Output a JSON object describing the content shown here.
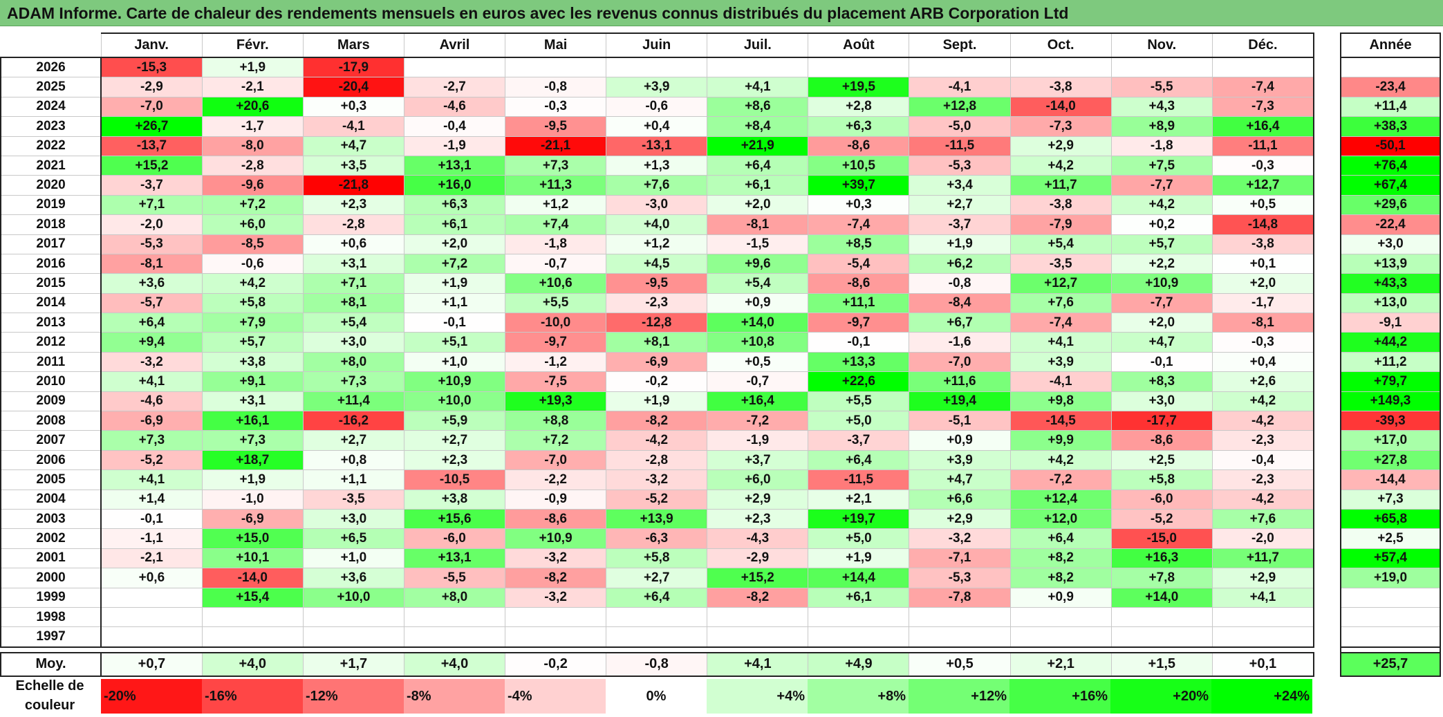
{
  "title": "ADAM Informe. Carte de chaleur des rendements mensuels en euros avec les revenus connus distribués du placement ARB Corporation Ltd",
  "chart_data": {
    "type": "heatmap",
    "months": [
      "Janv.",
      "Févr.",
      "Mars",
      "Avril",
      "Mai",
      "Juin",
      "Juil.",
      "Août",
      "Sept.",
      "Oct.",
      "Nov.",
      "Déc."
    ],
    "year_header": "Année",
    "rows": [
      {
        "year": "2026",
        "values": [
          "-15,3",
          "+1,9",
          "-17,9",
          "",
          "",
          "",
          "",
          "",
          "",
          "",
          "",
          ""
        ],
        "annual": ""
      },
      {
        "year": "2025",
        "values": [
          "-2,9",
          "-2,1",
          "-20,4",
          "-2,7",
          "-0,8",
          "+3,9",
          "+4,1",
          "+19,5",
          "-4,1",
          "-3,8",
          "-5,5",
          "-7,4"
        ],
        "annual": "-23,4"
      },
      {
        "year": "2024",
        "values": [
          "-7,0",
          "+20,6",
          "+0,3",
          "-4,6",
          "-0,3",
          "-0,6",
          "+8,6",
          "+2,8",
          "+12,8",
          "-14,0",
          "+4,3",
          "-7,3"
        ],
        "annual": "+11,4"
      },
      {
        "year": "2023",
        "values": [
          "+26,7",
          "-1,7",
          "-4,1",
          "-0,4",
          "-9,5",
          "+0,4",
          "+8,4",
          "+6,3",
          "-5,0",
          "-7,3",
          "+8,9",
          "+16,4"
        ],
        "annual": "+38,3"
      },
      {
        "year": "2022",
        "values": [
          "-13,7",
          "-8,0",
          "+4,7",
          "-1,9",
          "-21,1",
          "-13,1",
          "+21,9",
          "-8,6",
          "-11,5",
          "+2,9",
          "-1,8",
          "-11,1"
        ],
        "annual": "-50,1"
      },
      {
        "year": "2021",
        "values": [
          "+15,2",
          "-2,8",
          "+3,5",
          "+13,1",
          "+7,3",
          "+1,3",
          "+6,4",
          "+10,5",
          "-5,3",
          "+4,2",
          "+7,5",
          "-0,3"
        ],
        "annual": "+76,4"
      },
      {
        "year": "2020",
        "values": [
          "-3,7",
          "-9,6",
          "-21,8",
          "+16,0",
          "+11,3",
          "+7,6",
          "+6,1",
          "+39,7",
          "+3,4",
          "+11,7",
          "-7,7",
          "+12,7"
        ],
        "annual": "+67,4"
      },
      {
        "year": "2019",
        "values": [
          "+7,1",
          "+7,2",
          "+2,3",
          "+6,3",
          "+1,2",
          "-3,0",
          "+2,0",
          "+0,3",
          "+2,7",
          "-3,8",
          "+4,2",
          "+0,5"
        ],
        "annual": "+29,6"
      },
      {
        "year": "2018",
        "values": [
          "-2,0",
          "+6,0",
          "-2,8",
          "+6,1",
          "+7,4",
          "+4,0",
          "-8,1",
          "-7,4",
          "-3,7",
          "-7,9",
          "+0,2",
          "-14,8"
        ],
        "annual": "-22,4"
      },
      {
        "year": "2017",
        "values": [
          "-5,3",
          "-8,5",
          "+0,6",
          "+2,0",
          "-1,8",
          "+1,2",
          "-1,5",
          "+8,5",
          "+1,9",
          "+5,4",
          "+5,7",
          "-3,8"
        ],
        "annual": "+3,0"
      },
      {
        "year": "2016",
        "values": [
          "-8,1",
          "-0,6",
          "+3,1",
          "+7,2",
          "-0,7",
          "+4,5",
          "+9,6",
          "-5,4",
          "+6,2",
          "-3,5",
          "+2,2",
          "+0,1"
        ],
        "annual": "+13,9"
      },
      {
        "year": "2015",
        "values": [
          "+3,6",
          "+4,2",
          "+7,1",
          "+1,9",
          "+10,6",
          "-9,5",
          "+5,4",
          "-8,6",
          "-0,8",
          "+12,7",
          "+10,9",
          "+2,0"
        ],
        "annual": "+43,3"
      },
      {
        "year": "2014",
        "values": [
          "-5,7",
          "+5,8",
          "+8,1",
          "+1,1",
          "+5,5",
          "-2,3",
          "+0,9",
          "+11,1",
          "-8,4",
          "+7,6",
          "-7,7",
          "-1,7"
        ],
        "annual": "+13,0"
      },
      {
        "year": "2013",
        "values": [
          "+6,4",
          "+7,9",
          "+5,4",
          "-0,1",
          "-10,0",
          "-12,8",
          "+14,0",
          "-9,7",
          "+6,7",
          "-7,4",
          "+2,0",
          "-8,1"
        ],
        "annual": "-9,1"
      },
      {
        "year": "2012",
        "values": [
          "+9,4",
          "+5,7",
          "+3,0",
          "+5,1",
          "-9,7",
          "+8,1",
          "+10,8",
          "-0,1",
          "-1,6",
          "+4,1",
          "+4,7",
          "-0,3"
        ],
        "annual": "+44,2"
      },
      {
        "year": "2011",
        "values": [
          "-3,2",
          "+3,8",
          "+8,0",
          "+1,0",
          "-1,2",
          "-6,9",
          "+0,5",
          "+13,3",
          "-7,0",
          "+3,9",
          "-0,1",
          "+0,4"
        ],
        "annual": "+11,2"
      },
      {
        "year": "2010",
        "values": [
          "+4,1",
          "+9,1",
          "+7,3",
          "+10,9",
          "-7,5",
          "-0,2",
          "-0,7",
          "+22,6",
          "+11,6",
          "-4,1",
          "+8,3",
          "+2,6"
        ],
        "annual": "+79,7"
      },
      {
        "year": "2009",
        "values": [
          "-4,6",
          "+3,1",
          "+11,4",
          "+10,0",
          "+19,3",
          "+1,9",
          "+16,4",
          "+5,5",
          "+19,4",
          "+9,8",
          "+3,0",
          "+4,2"
        ],
        "annual": "+149,3"
      },
      {
        "year": "2008",
        "values": [
          "-6,9",
          "+16,1",
          "-16,2",
          "+5,9",
          "+8,8",
          "-8,2",
          "-7,2",
          "+5,0",
          "-5,1",
          "-14,5",
          "-17,7",
          "-4,2"
        ],
        "annual": "-39,3"
      },
      {
        "year": "2007",
        "values": [
          "+7,3",
          "+7,3",
          "+2,7",
          "+2,7",
          "+7,2",
          "-4,2",
          "-1,9",
          "-3,7",
          "+0,9",
          "+9,9",
          "-8,6",
          "-2,3"
        ],
        "annual": "+17,0"
      },
      {
        "year": "2006",
        "values": [
          "-5,2",
          "+18,7",
          "+0,8",
          "+2,3",
          "-7,0",
          "-2,8",
          "+3,7",
          "+6,4",
          "+3,9",
          "+4,2",
          "+2,5",
          "-0,4"
        ],
        "annual": "+27,8"
      },
      {
        "year": "2005",
        "values": [
          "+4,1",
          "+1,9",
          "+1,1",
          "-10,5",
          "-2,2",
          "-3,2",
          "+6,0",
          "-11,5",
          "+4,7",
          "-7,2",
          "+5,8",
          "-2,3"
        ],
        "annual": "-14,4"
      },
      {
        "year": "2004",
        "values": [
          "+1,4",
          "-1,0",
          "-3,5",
          "+3,8",
          "-0,9",
          "-5,2",
          "+2,9",
          "+2,1",
          "+6,6",
          "+12,4",
          "-6,0",
          "-4,2"
        ],
        "annual": "+7,3"
      },
      {
        "year": "2003",
        "values": [
          "-0,1",
          "-6,9",
          "+3,0",
          "+15,6",
          "-8,6",
          "+13,9",
          "+2,3",
          "+19,7",
          "+2,9",
          "+12,0",
          "-5,2",
          "+7,6"
        ],
        "annual": "+65,8"
      },
      {
        "year": "2002",
        "values": [
          "-1,1",
          "+15,0",
          "+6,5",
          "-6,0",
          "+10,9",
          "-6,3",
          "-4,3",
          "+5,0",
          "-3,2",
          "+6,4",
          "-15,0",
          "-2,0"
        ],
        "annual": "+2,5"
      },
      {
        "year": "2001",
        "values": [
          "-2,1",
          "+10,1",
          "+1,0",
          "+13,1",
          "-3,2",
          "+5,8",
          "-2,9",
          "+1,9",
          "-7,1",
          "+8,2",
          "+16,3",
          "+11,7"
        ],
        "annual": "+57,4"
      },
      {
        "year": "2000",
        "values": [
          "+0,6",
          "-14,0",
          "+3,6",
          "-5,5",
          "-8,2",
          "+2,7",
          "+15,2",
          "+14,4",
          "-5,3",
          "+8,2",
          "+7,8",
          "+2,9"
        ],
        "annual": "+19,0"
      },
      {
        "year": "1999",
        "values": [
          "",
          "+15,4",
          "+10,0",
          "+8,0",
          "-3,2",
          "+6,4",
          "-8,2",
          "+6,1",
          "-7,8",
          "+0,9",
          "+14,0",
          "+4,1"
        ],
        "annual": ""
      },
      {
        "year": "1998",
        "values": [
          "",
          "",
          "",
          "",
          "",
          "",
          "",
          "",
          "",
          "",
          "",
          ""
        ],
        "annual": ""
      },
      {
        "year": "1997",
        "values": [
          "",
          "",
          "",
          "",
          "",
          "",
          "",
          "",
          "",
          "",
          "",
          ""
        ],
        "annual": ""
      }
    ],
    "average": {
      "label": "Moy.",
      "values": [
        "+0,7",
        "+4,0",
        "+1,7",
        "+4,0",
        "-0,2",
        "-0,8",
        "+4,1",
        "+4,9",
        "+0,5",
        "+2,1",
        "+1,5",
        "+0,1"
      ],
      "annual": "+25,7"
    },
    "scale": {
      "label_line1": "Echelle de",
      "label_line2": "couleur",
      "stops": [
        "-20%",
        "-16%",
        "-12%",
        "-8%",
        "-4%",
        "0%",
        "+4%",
        "+8%",
        "+12%",
        "+16%",
        "+20%",
        "+24%"
      ],
      "stop_values": [
        -20,
        -16,
        -12,
        -8,
        -4,
        0,
        4,
        8,
        12,
        16,
        20,
        24
      ]
    },
    "colors": {
      "negative": "#ff0000",
      "neutral": "#ffffff",
      "positive": "#00ff00"
    }
  }
}
